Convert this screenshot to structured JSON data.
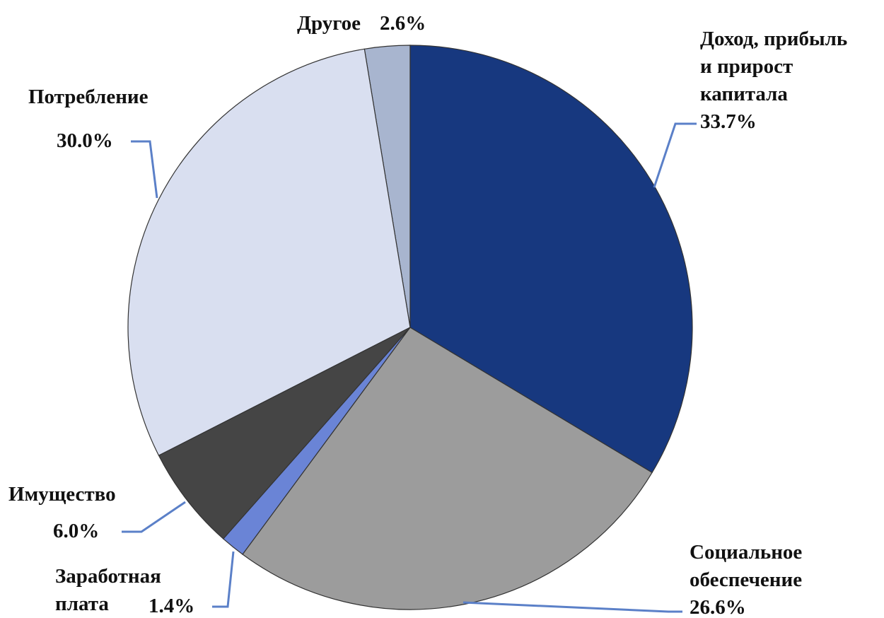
{
  "chart_data": {
    "type": "pie",
    "categories": [
      "Доход, прибыль\nи прирост\nкапитала",
      "Социальное\nобеспечение",
      "Заработная\nплата",
      "Имущество",
      "Потребление",
      "Другое"
    ],
    "values": [
      33.7,
      26.6,
      1.4,
      6.0,
      30.0,
      2.6
    ],
    "value_labels": [
      "33.7%",
      "26.6%",
      "1.4%",
      "6.0%",
      "30.0%",
      "2.6%"
    ],
    "colors": [
      "#17387f",
      "#9c9c9c",
      "#6a84d6",
      "#454545",
      "#d9dff0",
      "#a8b5cf"
    ]
  }
}
